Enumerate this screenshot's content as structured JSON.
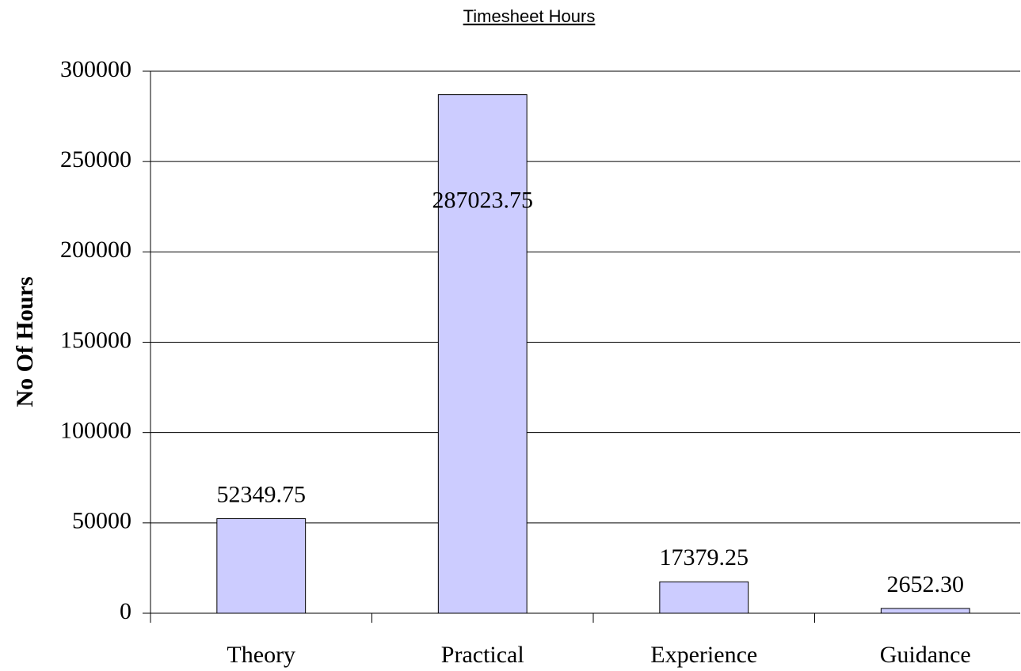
{
  "chart_data": {
    "type": "bar",
    "title": "Timesheet Hours",
    "y_label": "No Of Hours",
    "categories": [
      "Theory",
      "Practical",
      "Experience",
      "Guidance"
    ],
    "values": [
      52349.75,
      287023.75,
      17379.25,
      2652.3
    ],
    "value_labels": [
      "52349.75",
      "287023.75",
      "17379.25",
      "2652.30"
    ],
    "color": "#ccccff",
    "ylim": [
      0,
      300000
    ],
    "yticks": [
      0,
      50000,
      100000,
      150000,
      200000,
      250000,
      300000
    ],
    "grid": true
  }
}
